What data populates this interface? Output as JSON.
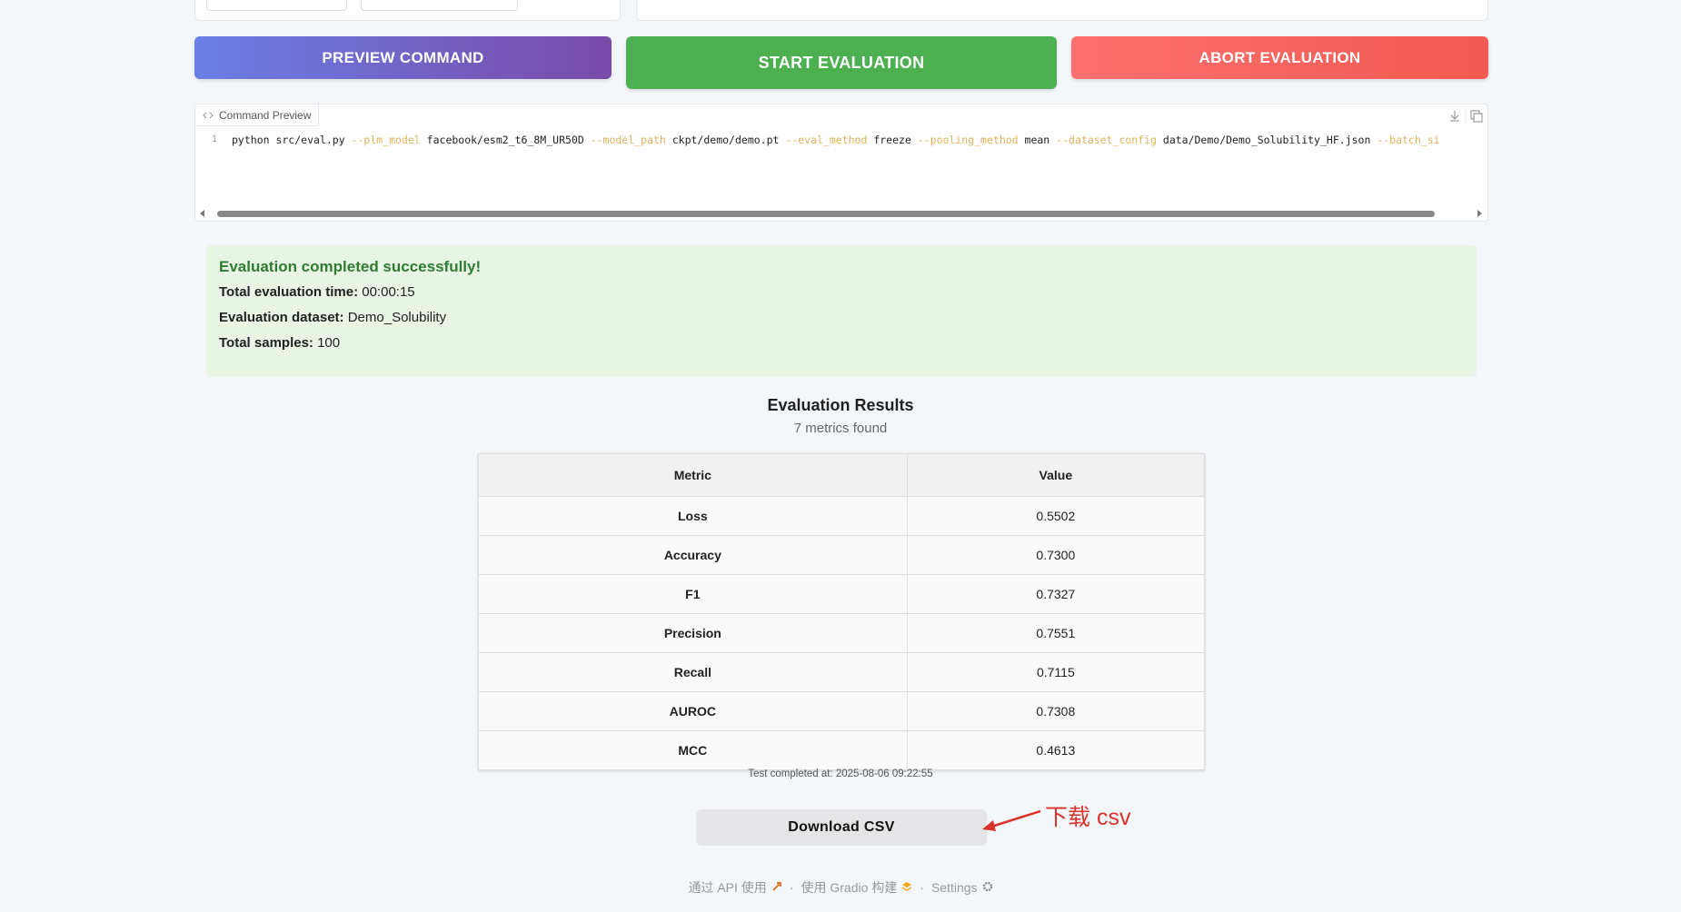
{
  "buttons": {
    "preview": "PREVIEW COMMAND",
    "start": "START EVALUATION",
    "abort": "ABORT EVALUATION"
  },
  "command_preview": {
    "label": "Command Preview",
    "line_number": "1",
    "program": "python src/eval.py",
    "args": [
      {
        "flag": "--plm_model",
        "value": "facebook/esm2_t6_8M_UR50D"
      },
      {
        "flag": "--model_path",
        "value": "ckpt/demo/demo.pt"
      },
      {
        "flag": "--eval_method",
        "value": "freeze"
      },
      {
        "flag": "--pooling_method",
        "value": "mean"
      },
      {
        "flag": "--dataset_config",
        "value": "data/Demo/Demo_Solubility_HF.json"
      },
      {
        "flag": "--batch_si"
      }
    ]
  },
  "status": {
    "title": "Evaluation completed successfully!",
    "items": [
      {
        "label": "Total evaluation time:",
        "value": "00:00:15"
      },
      {
        "label": "Evaluation dataset:",
        "value": "Demo_Solubility"
      },
      {
        "label": "Total samples:",
        "value": "100"
      }
    ]
  },
  "results": {
    "title": "Evaluation Results",
    "subtitle": "7 metrics found",
    "table": {
      "headers": [
        "Metric",
        "Value"
      ],
      "rows": [
        [
          "Loss",
          "0.5502"
        ],
        [
          "Accuracy",
          "0.7300"
        ],
        [
          "F1",
          "0.7327"
        ],
        [
          "Precision",
          "0.7551"
        ],
        [
          "Recall",
          "0.7115"
        ],
        [
          "AUROC",
          "0.7308"
        ],
        [
          "MCC",
          "0.4613"
        ]
      ]
    },
    "timestamp": "Test completed at: 2025-08-06 09:22:55",
    "download": "Download CSV",
    "annotation": "下载 csv"
  },
  "footer": {
    "links": [
      "通过 API 使用",
      "使用 Gradio 构建",
      "Settings"
    ],
    "separator": "·"
  }
}
